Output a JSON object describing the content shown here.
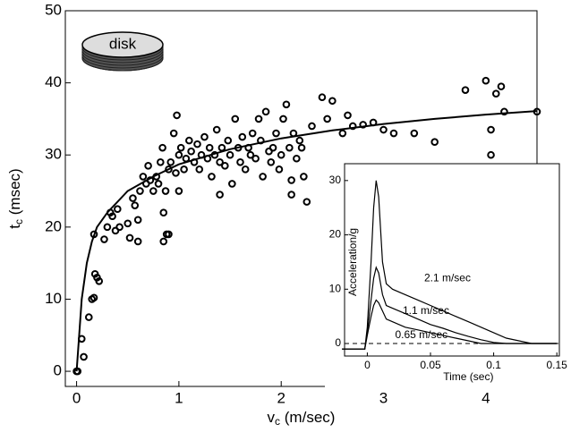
{
  "chart_data": [
    {
      "type": "scatter",
      "xlabel": [
        "v",
        "c",
        " (m/sec)"
      ],
      "ylabel": [
        "t",
        "c",
        " (msec)"
      ],
      "annotation": "disk",
      "xlim": [
        -0.11,
        4.5
      ],
      "ylim": [
        -2.1,
        50
      ],
      "xticks": [
        0,
        1,
        2,
        3,
        4
      ],
      "yticks": [
        0,
        10,
        20,
        30,
        40,
        50
      ],
      "series": [
        {
          "type": "scatter",
          "color": "#000000",
          "x": [
            0,
            0.01,
            0.05,
            0.07,
            0.12,
            0.15,
            0.17,
            0.18,
            0.2,
            0.22,
            0.17,
            0.3,
            0.33,
            0.35,
            0.4,
            0.38,
            0.42,
            0.5,
            0.52,
            0.55,
            0.57,
            0.6,
            0.6,
            0.62,
            0.65,
            0.68,
            0.7,
            0.72,
            0.75,
            0.78,
            0.8,
            0.82,
            0.84,
            0.85,
            0.87,
            0.88,
            0.9,
            0.92,
            0.95,
            0.97,
            0.98,
            1.0,
            1.02,
            1.05,
            1.07,
            1.1,
            1.12,
            1.15,
            1.18,
            1.2,
            1.22,
            1.25,
            1.28,
            1.3,
            1.32,
            1.35,
            1.37,
            1.4,
            1.4,
            1.42,
            1.45,
            1.48,
            1.5,
            1.52,
            1.55,
            1.58,
            1.6,
            1.62,
            1.65,
            1.68,
            1.7,
            1.72,
            1.75,
            1.78,
            1.8,
            1.82,
            1.85,
            1.88,
            1.9,
            1.92,
            1.95,
            1.98,
            2.0,
            2.02,
            2.05,
            2.08,
            2.1,
            2.1,
            2.12,
            2.15,
            2.18,
            2.2,
            2.22,
            2.25,
            2.3,
            2.4,
            2.45,
            2.5,
            2.6,
            2.65,
            2.7,
            2.8,
            2.9,
            3.0,
            3.1,
            3.3,
            3.5,
            3.8,
            4.0,
            4.05,
            4.05,
            4.1,
            4.15,
            4.18,
            4.5,
            0.27,
            1.0,
            0.9,
            0.85
          ],
          "values": [
            0,
            0,
            4.5,
            2,
            7.5,
            10,
            10.2,
            13.5,
            13,
            12.5,
            19,
            20,
            22,
            21.5,
            22.5,
            19.5,
            20,
            20.5,
            18.5,
            24,
            23,
            21,
            18,
            25,
            27,
            26,
            28.5,
            26.5,
            25,
            27,
            26,
            29,
            31,
            18,
            25,
            19,
            28,
            29,
            33,
            27.5,
            35.5,
            30,
            31,
            28,
            29.5,
            32,
            30.5,
            29,
            31.5,
            28,
            30,
            32.5,
            29.5,
            31,
            27,
            30,
            33.5,
            29,
            24.5,
            31,
            28.5,
            32,
            30,
            26,
            35,
            31,
            29,
            32.5,
            28,
            31,
            30,
            33,
            29.5,
            35,
            32,
            27,
            36,
            30.5,
            29,
            31,
            33,
            28,
            30,
            35,
            37,
            31,
            26.5,
            24.5,
            33,
            29.5,
            32,
            31,
            27,
            23.5,
            34,
            38,
            35,
            37.5,
            33,
            35.5,
            34,
            34.2,
            34.5,
            33.5,
            33,
            33,
            31.8,
            39,
            40.3,
            33.5,
            30,
            38.5,
            39.5,
            36,
            36,
            18.3,
            25,
            19,
            22
          ]
        },
        {
          "type": "line",
          "color": "#000000",
          "x": [
            0,
            0.02,
            0.05,
            0.1,
            0.15,
            0.2,
            0.3,
            0.5,
            0.75,
            1,
            1.5,
            2,
            2.5,
            3,
            3.5,
            4,
            4.5
          ],
          "values": [
            0,
            4,
            10,
            15,
            18,
            20,
            22,
            25,
            27,
            28.7,
            30.8,
            32.3,
            33.4,
            34.3,
            35,
            35.6,
            36.1
          ]
        }
      ]
    },
    {
      "type": "line",
      "xlabel": "Time (sec)",
      "ylabel": "Acceleration/g",
      "xlim": [
        -0.018,
        0.152
      ],
      "ylim": [
        -2.3,
        33.1
      ],
      "xticks": [
        0,
        0.05,
        0.1,
        0.15
      ],
      "yticks": [
        0,
        10,
        20,
        30
      ],
      "x": [
        -0.02,
        -0.002,
        0,
        0.003,
        0.005,
        0.007,
        0.009,
        0.012,
        0.015,
        0.02,
        0.03,
        0.04,
        0.05,
        0.06,
        0.07,
        0.08,
        0.09,
        0.1,
        0.11,
        0.12,
        0.13,
        0.15
      ],
      "series": [
        {
          "label": "2.1 m/sec",
          "color": "#000000",
          "values": [
            -1,
            -1,
            3,
            15,
            25,
            30,
            27,
            15,
            11,
            10,
            9,
            8,
            7,
            6,
            5,
            4,
            3,
            2,
            1,
            0.5,
            0,
            0
          ]
        },
        {
          "label": "1.1 m/sec",
          "color": "#000000",
          "values": [
            -1,
            -1,
            2,
            8,
            12,
            14,
            13,
            9,
            7,
            6.5,
            5.5,
            4.5,
            3.5,
            2.8,
            2,
            1.3,
            0.7,
            0.2,
            0,
            0,
            0,
            0
          ]
        },
        {
          "label": "0.65 m/sec",
          "color": "#000000",
          "values": [
            -1,
            -1,
            1.5,
            5,
            7,
            8,
            7.5,
            6,
            4.5,
            4,
            3,
            2.5,
            2,
            1.5,
            1,
            0.5,
            0,
            0,
            0,
            0,
            0,
            0
          ]
        }
      ],
      "baseline": 0
    }
  ]
}
